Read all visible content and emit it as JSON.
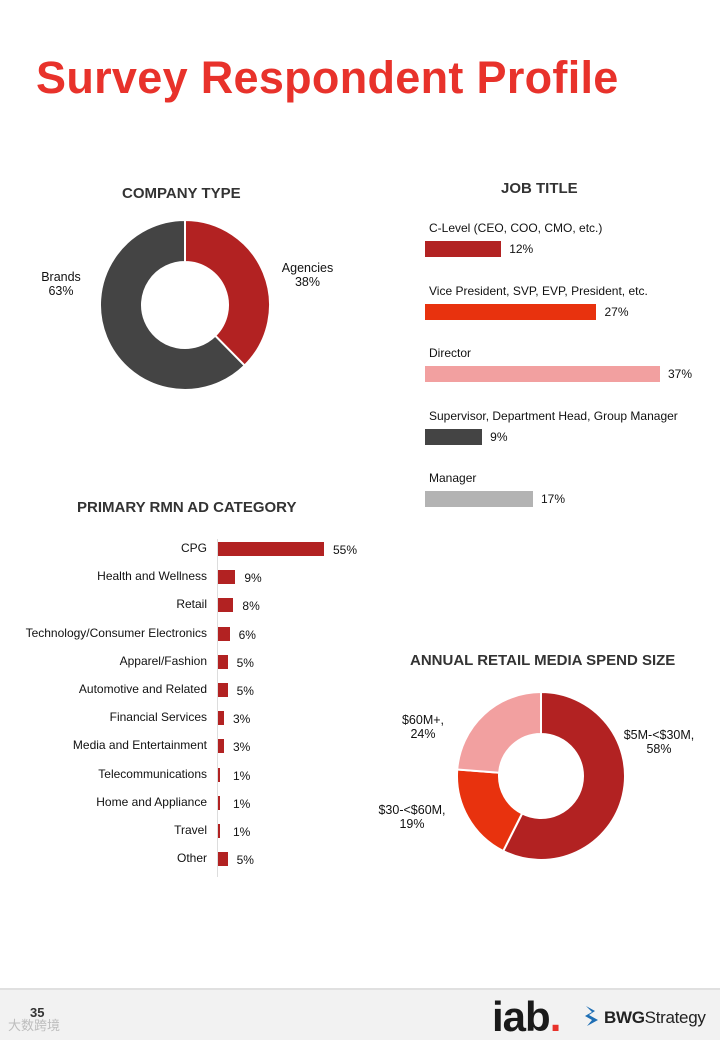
{
  "title": "Survey Respondent Profile",
  "page_number": "35",
  "watermark": "大数跨境",
  "logos": {
    "iab": "iab",
    "iab_dot": ".",
    "bwg_bold": "BWG",
    "bwg_rest": "Strategy"
  },
  "colors": {
    "title": "#e8322b",
    "dark_red": "#b22222",
    "bright_red": "#e8320e",
    "pink": "#f2a0a0",
    "dark_gray": "#444444",
    "light_gray": "#b3b3b3"
  },
  "chart_data": [
    {
      "id": "company-type",
      "type": "pie",
      "style": "donut",
      "title": "COMPANY TYPE",
      "slices": [
        {
          "name": "Agencies",
          "value": 38,
          "label": "38%",
          "color": "#b22222"
        },
        {
          "name": "Brands",
          "value": 63,
          "label": "63%",
          "color": "#444444"
        }
      ]
    },
    {
      "id": "job-title",
      "type": "bar",
      "orientation": "horizontal",
      "title": "JOB TITLE",
      "xlim": [
        0,
        37
      ],
      "categories": [
        "C-Level (CEO, COO, CMO, etc.)",
        "Vice President, SVP, EVP, President, etc.",
        "Director",
        "Supervisor, Department Head, Group Manager",
        "Manager"
      ],
      "values": [
        12,
        27,
        37,
        9,
        17
      ],
      "labels": [
        "12%",
        "27%",
        "37%",
        "9%",
        "17%"
      ],
      "colors": [
        "#b22222",
        "#e8320e",
        "#f2a0a0",
        "#444444",
        "#b3b3b3"
      ]
    },
    {
      "id": "rmn-category",
      "type": "bar",
      "orientation": "horizontal",
      "title": "PRIMARY RMN AD CATEGORY",
      "xlim": [
        0,
        55
      ],
      "categories": [
        "CPG",
        "Health and Wellness",
        "Retail",
        "Technology/Consumer Electronics",
        "Apparel/Fashion",
        "Automotive and Related",
        "Financial Services",
        "Media and Entertainment",
        "Telecommunications",
        "Home and Appliance",
        "Travel",
        "Other"
      ],
      "values": [
        55,
        9,
        8,
        6,
        5,
        5,
        3,
        3,
        1,
        1,
        1,
        5
      ],
      "labels": [
        "55%",
        "9%",
        "8%",
        "6%",
        "5%",
        "5%",
        "3%",
        "3%",
        "1%",
        "1%",
        "1%",
        "5%"
      ],
      "color": "#b22222"
    },
    {
      "id": "spend-size",
      "type": "pie",
      "style": "donut",
      "title": "ANNUAL RETAIL MEDIA SPEND SIZE",
      "slices": [
        {
          "name": "$5M-<$30M,",
          "value": 58,
          "label": "58%",
          "color": "#b22222"
        },
        {
          "name": "$30-<$60M,",
          "value": 19,
          "label": "19%",
          "color": "#e8320e"
        },
        {
          "name": "$60M+,",
          "value": 24,
          "label": "24%",
          "color": "#f2a0a0"
        }
      ]
    }
  ]
}
